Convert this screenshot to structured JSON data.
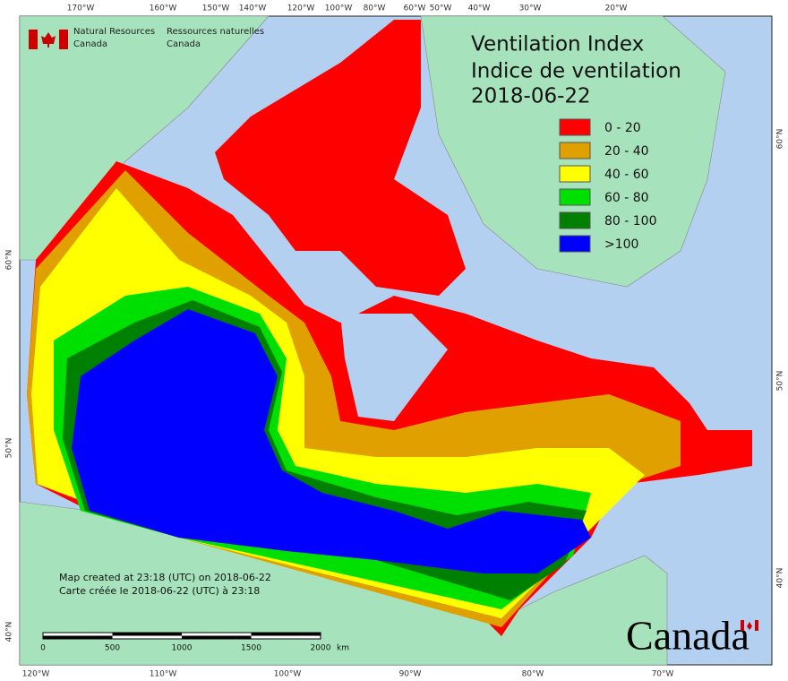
{
  "header": {
    "agency_en_1": "Natural Resources",
    "agency_en_2": "Canada",
    "agency_fr_1": "Ressources naturelles",
    "agency_fr_2": "Canada"
  },
  "title": {
    "line1": "Ventilation Index",
    "line2": "Indice de ventilation",
    "date": "2018-06-22"
  },
  "legend": [
    {
      "label": "0 - 20",
      "color": "#ff0000"
    },
    {
      "label": "20 - 40",
      "color": "#e0a000"
    },
    {
      "label": "40 - 60",
      "color": "#ffff00"
    },
    {
      "label": "60 - 80",
      "color": "#00e000"
    },
    {
      "label": "80 - 100",
      "color": "#008000"
    },
    {
      "label": ">100",
      "color": "#0000ff"
    }
  ],
  "graticule": {
    "top": [
      "170°W",
      "160°W",
      "150°W",
      "140°W",
      "120°W",
      "100°W",
      "80°W",
      "60°W",
      "50°W",
      "40°W",
      "30°W",
      "20°W"
    ],
    "bottom": [
      "120°W",
      "110°W",
      "100°W",
      "90°W",
      "80°W",
      "70°W"
    ],
    "left": [
      "60°N",
      "50°N",
      "40°N"
    ],
    "right": [
      "60°N",
      "50°N",
      "40°N"
    ]
  },
  "notes": [
    "Map created at 23:18 (UTC) on 2018-06-22",
    "Carte créée le 2018-06-22 (UTC) à 23:18"
  ],
  "scale_bar": {
    "values": [
      0,
      500,
      1000,
      1500,
      2000
    ],
    "unit": "km"
  },
  "wordmark": "Canada"
}
